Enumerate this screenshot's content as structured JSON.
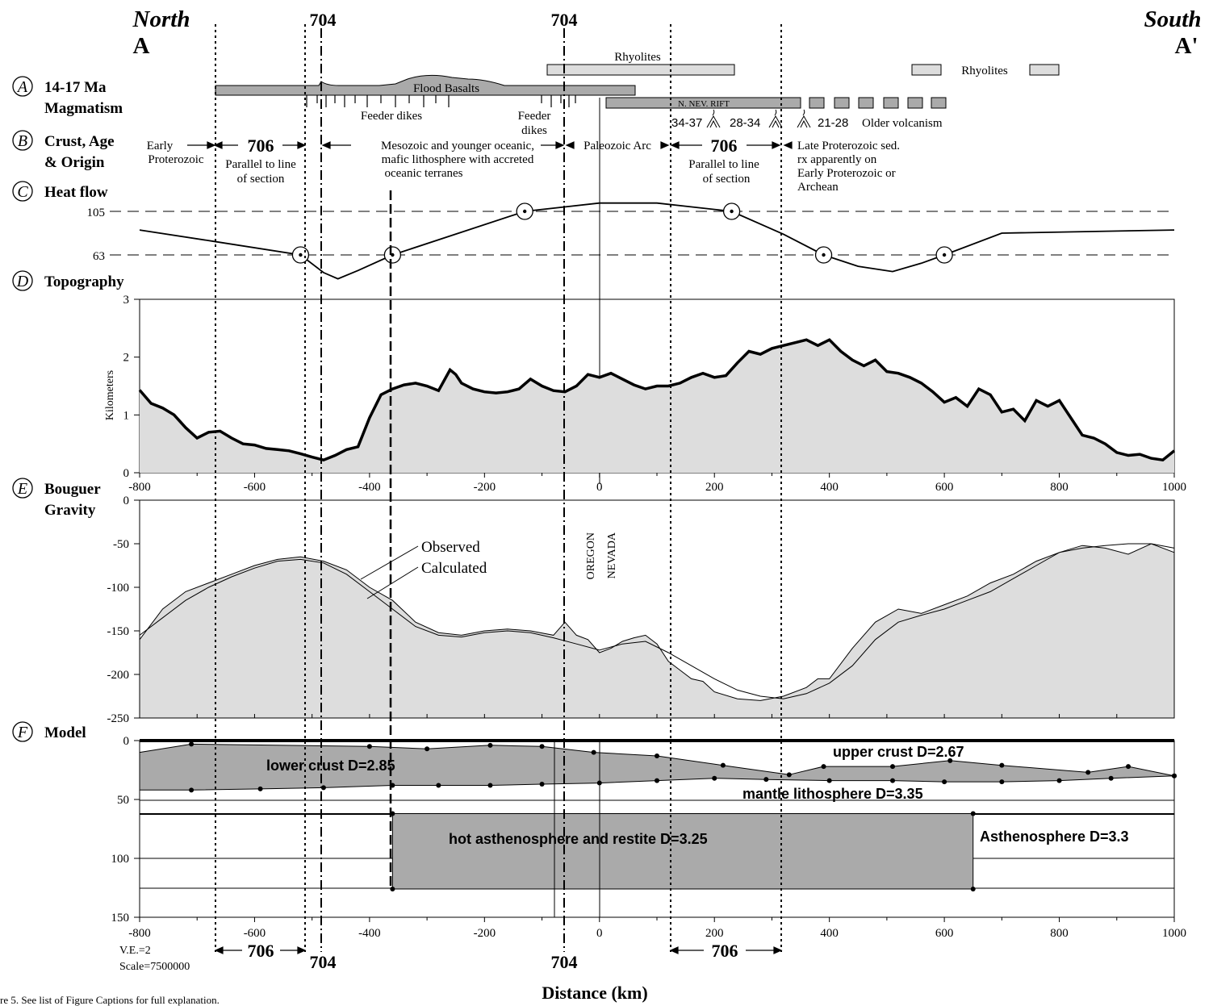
{
  "header": {
    "north": "North",
    "a": "A",
    "south": "South",
    "a_prime": "A'",
    "label_704": "704",
    "label_706": "706"
  },
  "panels": {
    "A": {
      "letter": "A",
      "title1": "14-17 Ma",
      "title2": "Magmatism"
    },
    "B": {
      "letter": "B",
      "title1": "Crust, Age",
      "title2": "& Origin"
    },
    "C": {
      "letter": "C",
      "title1": "Heat flow"
    },
    "D": {
      "letter": "D",
      "title1": "Topography"
    },
    "E": {
      "letter": "E",
      "title1": "Bouguer",
      "title2": "Gravity"
    },
    "F": {
      "letter": "F",
      "title1": "Model"
    }
  },
  "magmatism": {
    "rhyolites": "Rhyolites",
    "rhyolites_right": "Rhyolites",
    "flood_basalts": "Flood Basalts",
    "feeder_dikes": "Feeder dikes",
    "feeder_dikes2_line1": "Feeder",
    "feeder_dikes2_line2": "dikes",
    "rift": "N. NEV. RIFT",
    "v1": "34-37",
    "v2": "28-34",
    "v3": "21-28",
    "older": "Older volcanism"
  },
  "crust": {
    "early_prot1": "Early",
    "early_prot2": "Proterozoic",
    "parallel1": "Parallel to line",
    "parallel2": "of section",
    "meso1": "Mesozoic and younger oceanic,",
    "meso2": "mafic lithosphere with accreted",
    "meso3": "oceanic terranes",
    "paleo": "Paleozoic Arc",
    "parallel3": "Parallel to line",
    "parallel4": "of section",
    "late1": "Late Proterozoic sed.",
    "late2": "rx apparently on",
    "late3": "Early Proterozoic or",
    "late4": "Archean"
  },
  "heatflow": {
    "ref_high": "105",
    "ref_low": "63"
  },
  "gravity": {
    "observed": "Observed",
    "calculated": "Calculated",
    "oregon": "OREGON",
    "nevada": "NEVADA"
  },
  "model": {
    "lower_crust": "lower crust  D=2.85",
    "upper_crust": "upper crust  D=2.67",
    "mantle_lith": "mantle lithosphere  D=3.35",
    "hot_asth": "hot asthenosphere and restite  D=3.25",
    "asth": "Asthenosphere  D=3.3"
  },
  "footer": {
    "ve": "V.E.=2",
    "scale": "Scale=7500000",
    "xlabel": "Distance (km)",
    "caption": "re 5. See  list of Figure Captions for full explanation."
  },
  "colors": {
    "fill": "#dddddd",
    "dark": "#aaaaaa",
    "bar": "#bbbbbb"
  },
  "chart_data": [
    {
      "type": "line",
      "name": "heat_flow",
      "ref_lines": [
        105,
        63
      ],
      "x": [
        -800,
        -670,
        -520,
        -480,
        -455,
        -420,
        -360,
        -130,
        0,
        100,
        230,
        320,
        390,
        450,
        510,
        560,
        600,
        700,
        1000
      ],
      "y": [
        87,
        76,
        63,
        46,
        40,
        48,
        63,
        105,
        113,
        113,
        105,
        83,
        63,
        52,
        47,
        55,
        63,
        84,
        87
      ]
    },
    {
      "type": "area",
      "name": "topography",
      "ylabel": "Kilometers",
      "xlim": [
        -800,
        1000
      ],
      "ylim": [
        0,
        3
      ],
      "xticks": [
        -800,
        -600,
        -400,
        -200,
        0,
        200,
        400,
        600,
        800,
        1000
      ],
      "yticks": [
        0,
        1,
        2,
        3
      ],
      "x": [
        -800,
        -780,
        -760,
        -740,
        -720,
        -700,
        -680,
        -660,
        -640,
        -620,
        -600,
        -580,
        -560,
        -540,
        -520,
        -500,
        -480,
        -460,
        -440,
        -420,
        -400,
        -380,
        -360,
        -340,
        -320,
        -300,
        -280,
        -260,
        -250,
        -240,
        -220,
        -200,
        -180,
        -160,
        -140,
        -120,
        -100,
        -80,
        -60,
        -40,
        -20,
        0,
        20,
        40,
        60,
        80,
        100,
        120,
        140,
        160,
        180,
        200,
        220,
        240,
        260,
        280,
        300,
        320,
        340,
        360,
        380,
        400,
        420,
        440,
        460,
        480,
        500,
        520,
        540,
        560,
        580,
        600,
        620,
        640,
        660,
        680,
        700,
        720,
        740,
        760,
        780,
        800,
        820,
        840,
        860,
        880,
        900,
        920,
        940,
        960,
        980,
        1000
      ],
      "y": [
        1.43,
        1.2,
        1.12,
        1.0,
        0.78,
        0.6,
        0.7,
        0.72,
        0.6,
        0.5,
        0.48,
        0.42,
        0.4,
        0.38,
        0.33,
        0.27,
        0.22,
        0.3,
        0.4,
        0.45,
        0.95,
        1.35,
        1.45,
        1.52,
        1.55,
        1.5,
        1.42,
        1.78,
        1.7,
        1.55,
        1.45,
        1.4,
        1.38,
        1.4,
        1.45,
        1.62,
        1.5,
        1.42,
        1.4,
        1.5,
        1.7,
        1.65,
        1.72,
        1.62,
        1.52,
        1.45,
        1.5,
        1.5,
        1.55,
        1.65,
        1.72,
        1.65,
        1.68,
        1.9,
        2.1,
        2.05,
        2.15,
        2.2,
        2.25,
        2.3,
        2.2,
        2.3,
        2.1,
        1.95,
        1.85,
        1.95,
        1.75,
        1.72,
        1.65,
        1.55,
        1.4,
        1.22,
        1.3,
        1.15,
        1.45,
        1.35,
        1.05,
        1.1,
        0.9,
        1.25,
        1.15,
        1.25,
        0.95,
        0.65,
        0.6,
        0.5,
        0.35,
        0.3,
        0.32,
        0.25,
        0.22,
        0.38
      ]
    },
    {
      "type": "area",
      "name": "bouguer_gravity",
      "xlim": [
        -800,
        1000
      ],
      "ylim": [
        -250,
        0
      ],
      "yticks": [
        0,
        -50,
        -100,
        -150,
        -200,
        -250
      ],
      "series": [
        {
          "name": "Observed",
          "x": [
            -800,
            -760,
            -720,
            -680,
            -640,
            -600,
            -560,
            -520,
            -480,
            -440,
            -400,
            -360,
            -320,
            -280,
            -240,
            -200,
            -160,
            -120,
            -80,
            -60,
            -40,
            -20,
            0,
            20,
            40,
            60,
            80,
            100,
            120,
            140,
            160,
            180,
            200,
            240,
            280,
            320,
            360,
            380,
            400,
            440,
            480,
            520,
            560,
            600,
            640,
            680,
            720,
            760,
            800,
            840,
            880,
            920,
            960,
            1000
          ],
          "y": [
            -160,
            -125,
            -105,
            -95,
            -85,
            -75,
            -68,
            -65,
            -70,
            -80,
            -100,
            -115,
            -140,
            -152,
            -155,
            -150,
            -148,
            -150,
            -155,
            -140,
            -155,
            -160,
            -175,
            -170,
            -162,
            -158,
            -155,
            -165,
            -185,
            -195,
            -205,
            -208,
            -220,
            -228,
            -230,
            -225,
            -215,
            -205,
            -205,
            -170,
            -140,
            -125,
            -130,
            -120,
            -110,
            -95,
            -85,
            -70,
            -60,
            -52,
            -55,
            -62,
            -50,
            -60
          ]
        },
        {
          "name": "Calculated",
          "x": [
            -800,
            -760,
            -720,
            -680,
            -640,
            -600,
            -560,
            -520,
            -480,
            -440,
            -400,
            -360,
            -320,
            -280,
            -240,
            -200,
            -160,
            -120,
            -80,
            -40,
            0,
            40,
            80,
            120,
            160,
            200,
            240,
            280,
            320,
            360,
            400,
            440,
            480,
            520,
            560,
            600,
            640,
            680,
            720,
            760,
            800,
            840,
            880,
            920,
            960,
            1000
          ],
          "y": [
            -155,
            -135,
            -115,
            -100,
            -88,
            -78,
            -70,
            -68,
            -72,
            -85,
            -105,
            -125,
            -145,
            -155,
            -157,
            -152,
            -150,
            -152,
            -158,
            -165,
            -172,
            -165,
            -162,
            -175,
            -190,
            -205,
            -218,
            -225,
            -228,
            -222,
            -210,
            -190,
            -160,
            -140,
            -132,
            -125,
            -115,
            -105,
            -90,
            -75,
            -60,
            -55,
            -52,
            -50,
            -50,
            -55
          ]
        }
      ]
    },
    {
      "type": "area",
      "name": "density_model",
      "xlim": [
        -800,
        1000
      ],
      "ylim": [
        150,
        0
      ],
      "yticks": [
        0,
        50,
        100,
        150
      ],
      "lower_crust_top": {
        "x": [
          -800,
          -710,
          -400,
          -300,
          -190,
          -100,
          -10,
          100,
          215,
          330,
          390,
          510,
          610,
          700,
          850,
          920,
          1000
        ],
        "y": [
          10,
          3,
          5,
          7,
          4,
          5,
          10,
          13,
          21,
          29,
          22,
          22,
          17,
          21,
          27,
          22,
          30
        ]
      },
      "moho": {
        "x": [
          -800,
          -710,
          -590,
          -480,
          -360,
          -280,
          -190,
          -100,
          0,
          100,
          200,
          290,
          400,
          510,
          600,
          700,
          800,
          890,
          1000
        ],
        "y": [
          42,
          42,
          41,
          40,
          38,
          38,
          38,
          37,
          36,
          34,
          32,
          33,
          34,
          34,
          35,
          35,
          34,
          32,
          30
        ]
      },
      "hot_block": {
        "x": [
          -360,
          650
        ],
        "y": [
          62,
          126
        ]
      }
    }
  ]
}
